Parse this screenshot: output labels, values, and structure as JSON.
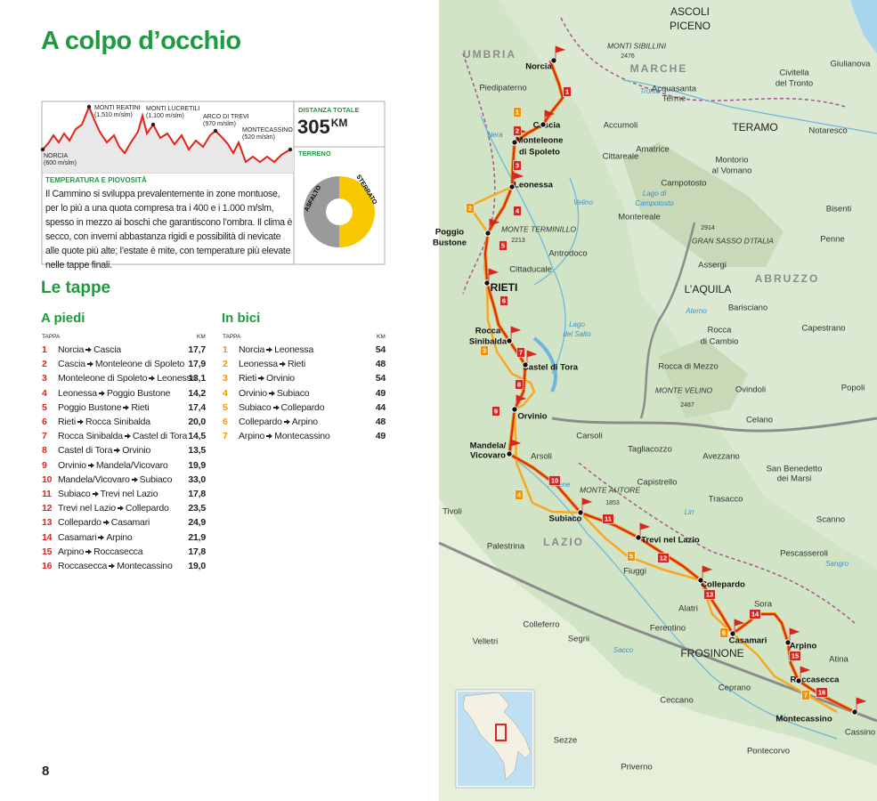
{
  "header": {
    "title": "A colpo d’occhio"
  },
  "profile": {
    "start": {
      "name": "NORCIA",
      "alt": "(600 m/slm)"
    },
    "peaks": [
      {
        "name": "MONTI REATINI",
        "alt": "(1.510 m/slm)"
      },
      {
        "name": "MONTI LUCRETILI",
        "alt": "(1.100 m/slm)"
      },
      {
        "name": "ARCO DI TREVI",
        "alt": "(970 m/slm)"
      },
      {
        "name": "MONTECASSINO",
        "alt": "(520 m/slm)"
      }
    ]
  },
  "distance": {
    "label": "DISTANZA TOTALE",
    "value": "305",
    "unit": "KM"
  },
  "terrain": {
    "label": "TERRENO",
    "paved": "ASFALTO",
    "unpaved": "STERRATO"
  },
  "climate": {
    "heading": "TEMPERATURA E PIOVOSITÀ",
    "text": "Il Cammino si sviluppa prevalentemente in zone montuose, per lo più a una quota compresa tra i 400 e i 1.000 m/slm, spesso in mezzo ai boschi che garantiscono l’ombra. Il clima è secco, con inverni abbastanza rigidi e possibilità di nevicate alle quote più alte; l’estate è mite, con temperature più elevate nelle tappe finali."
  },
  "stages_title": "Le tappe",
  "walk": {
    "title": "A piedi",
    "col_stage": "TAPPA",
    "col_km": "KM",
    "rows": [
      {
        "num": 1,
        "from": "Norcia",
        "to": "Cascia",
        "km": "17,7"
      },
      {
        "num": 2,
        "from": "Cascia",
        "to": "Monteleone di Spoleto",
        "km": "17,9"
      },
      {
        "num": 3,
        "from": "Monteleone di Spoleto",
        "to": "Leonessa",
        "km": "13,1"
      },
      {
        "num": 4,
        "from": "Leonessa",
        "to": "Poggio Bustone",
        "km": "14,2"
      },
      {
        "num": 5,
        "from": "Poggio Bustone",
        "to": "Rieti",
        "km": "17,4"
      },
      {
        "num": 6,
        "from": "Rieti",
        "to": "Rocca Sinibalda",
        "km": "20,0"
      },
      {
        "num": 7,
        "from": "Rocca Sinibalda",
        "to": "Castel di Tora",
        "km": "14,5"
      },
      {
        "num": 8,
        "from": "Castel di Tora",
        "to": "Orvinio",
        "km": "13,5"
      },
      {
        "num": 9,
        "from": "Orvinio",
        "to": "Mandela/Vicovaro",
        "km": "19,9"
      },
      {
        "num": 10,
        "from": "Mandela/Vicovaro",
        "to": "Subiaco",
        "km": "33,0"
      },
      {
        "num": 11,
        "from": "Subiaco",
        "to": "Trevi nel Lazio",
        "km": "17,8"
      },
      {
        "num": 12,
        "from": "Trevi nel Lazio",
        "to": "Collepardo",
        "km": "23,5"
      },
      {
        "num": 13,
        "from": "Collepardo",
        "to": "Casamari",
        "km": "24,9"
      },
      {
        "num": 14,
        "from": "Casamari",
        "to": "Arpino",
        "km": "21,9"
      },
      {
        "num": 15,
        "from": "Arpino",
        "to": "Roccasecca",
        "km": "17,8"
      },
      {
        "num": 16,
        "from": "Roccasecca",
        "to": "Montecassino",
        "km": "19,0"
      }
    ]
  },
  "bike": {
    "title": "In bici",
    "col_stage": "TAPPA",
    "col_km": "KM",
    "rows": [
      {
        "num": 1,
        "from": "Norcia",
        "to": "Leonessa",
        "km": 54
      },
      {
        "num": 2,
        "from": "Leonessa",
        "to": "Rieti",
        "km": 48
      },
      {
        "num": 3,
        "from": "Rieti",
        "to": "Orvinio",
        "km": 54
      },
      {
        "num": 4,
        "from": "Orvinio",
        "to": "Subiaco",
        "km": 49
      },
      {
        "num": 5,
        "from": "Subiaco",
        "to": "Collepardo",
        "km": 44
      },
      {
        "num": 6,
        "from": "Collepardo",
        "to": "Arpino",
        "km": 48
      },
      {
        "num": 7,
        "from": "Arpino",
        "to": "Montecassino",
        "km": 49
      }
    ]
  },
  "page_number": "8",
  "map": {
    "places": [
      "ASCOLI",
      "PICENO",
      "UMBRIA",
      "MONTI SIBILLINI",
      "2476",
      "MARCHE",
      "Norcia",
      "Piedipaterno",
      "Civitella",
      "del Tronto",
      "Giulianova",
      "Acquasanta",
      "Terme",
      "Tronto",
      "Cascia",
      "Accumoli",
      "TERAMO",
      "Notaresco",
      "Nera",
      "Monteleone",
      "di Spoleto",
      "Amatrice",
      "Cittareale",
      "Montorio",
      "al Vomano",
      "Leonessa",
      "Campotosto",
      "Lago di",
      "Campotosto",
      "Velino",
      "Bisenti",
      "Montereale",
      "Poggio",
      "Bustone",
      "MONTE TERMINILLO",
      "2213",
      "2914",
      "GRAN SASSO D’ITALIA",
      "Penne",
      "Antrodoco",
      "Assergi",
      "Cittaducale",
      "ABRUZZO",
      "RIETI",
      "L’AQUILA",
      "Barisciano",
      "Aterno",
      "Lago",
      "del Salto",
      "Capestrano",
      "Rocca",
      "Sinibalda",
      "Rocca",
      "di Cambio",
      "Castel di Tora",
      "Rocca di Mezzo",
      "Popoli",
      "MONTE VELINO",
      "2487",
      "Ovindoli",
      "Orvinio",
      "Celano",
      "Carsoli",
      "Mandela/",
      "Vicovaro",
      "Tagliacozzo",
      "Arsoli",
      "Avezzano",
      "San Benedetto",
      "dei Marsi",
      "Capistrello",
      "Aniene",
      "MONTE AUTORE",
      "1853",
      "Trasacco",
      "Tivoli",
      "Subiaco",
      "Liri",
      "Scanno",
      "Trevi nel Lazio",
      "LAZIO",
      "Palestrina",
      "Pescasseroli",
      "Sangro",
      "Fiuggi",
      "Collepardo",
      "Sora",
      "Alatri",
      "Colleferro",
      "Ferentino",
      "Segni",
      "Casamari",
      "Arpino",
      "Velletri",
      "Sacco",
      "FROSINONE",
      "Atina",
      "Roccasecca",
      "Ceprano",
      "Ceccano",
      "Liri",
      "Montecassino",
      "Sezze",
      "Cassino",
      "Pontecorvo",
      "Priverno"
    ]
  }
}
